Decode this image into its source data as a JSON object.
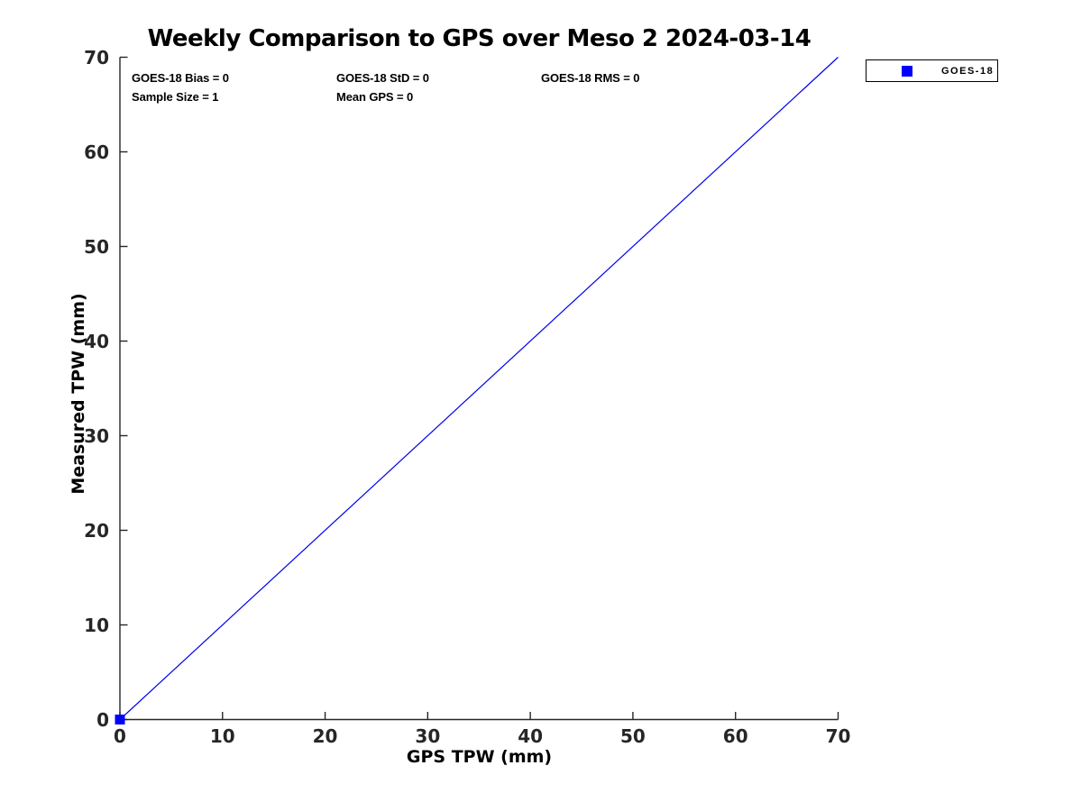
{
  "chart_data": {
    "type": "scatter",
    "title": "Weekly Comparison to GPS over Meso 2 2024-03-14",
    "xlabel": "GPS TPW (mm)",
    "ylabel": "Measured TPW (mm)",
    "xlim": [
      0,
      70
    ],
    "ylim": [
      0,
      70
    ],
    "x_ticks": [
      0,
      10,
      20,
      30,
      40,
      50,
      60,
      70
    ],
    "y_ticks": [
      0,
      10,
      20,
      30,
      40,
      50,
      60,
      70
    ],
    "grid": false,
    "legend_position": "outside-top-right",
    "series": [
      {
        "name": "GOES-18",
        "type": "scatter",
        "marker": "square",
        "marker_size": 11,
        "color": "#0000ff",
        "x": [
          0
        ],
        "y": [
          0
        ]
      }
    ],
    "identity_line": {
      "x": [
        0,
        70
      ],
      "y": [
        0,
        70
      ],
      "color": "#0000ee",
      "width": 1.2
    },
    "annotations": {
      "row1": [
        "GOES-18 Bias = 0",
        "GOES-18 StD = 0",
        "GOES-18 RMS = 0"
      ],
      "row2": [
        "Sample Size = 1",
        "Mean GPS = 0"
      ]
    },
    "stats": {
      "bias": 0,
      "std": 0,
      "rms": 0,
      "sample_size": 1,
      "mean_gps": 0
    },
    "axis_color": "#262626",
    "text_color": "#000000",
    "background": "#ffffff"
  }
}
